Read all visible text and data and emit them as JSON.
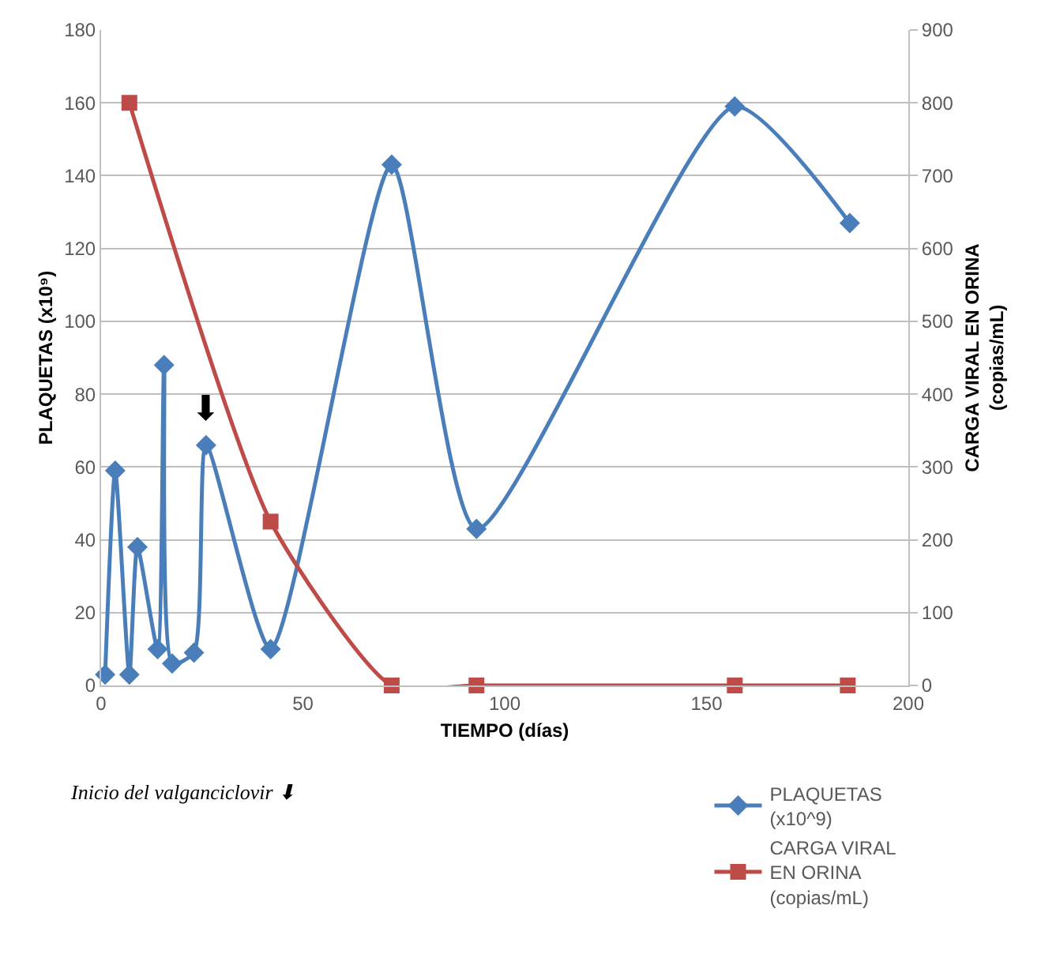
{
  "chart_data": {
    "type": "line",
    "xlabel": "TIEMPO (días)",
    "ylabel": "PLAQUETAS (x10⁹)",
    "y2label": "CARGA VIRAL EN ORINA (copias/mL)",
    "xlim": [
      0,
      200
    ],
    "xticks": [
      0,
      50,
      100,
      150,
      200
    ],
    "ylim": [
      0,
      180
    ],
    "yticks": [
      0,
      20,
      40,
      60,
      80,
      100,
      120,
      140,
      160,
      180
    ],
    "y2lim": [
      0,
      900
    ],
    "y2ticks": [
      0,
      100,
      200,
      300,
      400,
      500,
      600,
      700,
      800,
      900
    ],
    "grid": "y",
    "legend": "bottom right",
    "line_style": "solid",
    "series": [
      {
        "name": "PLAQUETAS (x10^9)",
        "color": "#4a7ebb",
        "marker": "diamond",
        "x": [
          1,
          3.5,
          7,
          9,
          14,
          15.6,
          17.6,
          23,
          26,
          42,
          72,
          93,
          157,
          185.5
        ],
        "values": [
          3,
          59,
          3,
          38,
          10,
          88,
          6,
          9,
          66,
          10,
          143,
          43,
          159,
          127
        ]
      },
      {
        "name": "CARGA VIRAL EN ORINA (copias/mL)",
        "color": "#be4b48",
        "marker": "square",
        "axis": "y2",
        "x": [
          7,
          42,
          72,
          93,
          157,
          185
        ],
        "values": [
          800,
          225,
          0,
          0,
          0,
          0
        ]
      }
    ],
    "annotations": [
      {
        "text": "⬇",
        "x": 26,
        "y": 66
      },
      "Inicio del valganciclovir ⬇"
    ]
  }
}
